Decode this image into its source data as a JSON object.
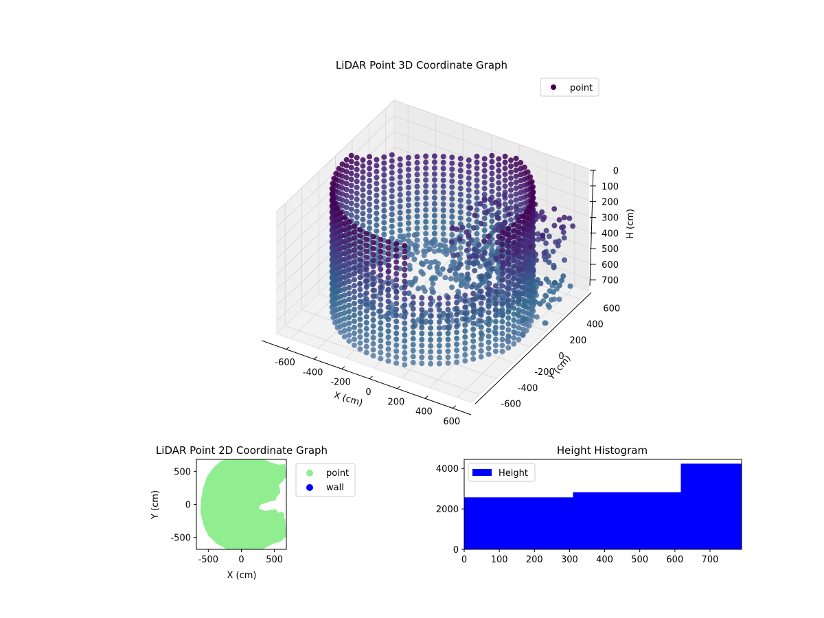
{
  "chart_data": [
    {
      "id": "lidar-3d",
      "type": "scatter",
      "title": "LiDAR Point 3D Coordinate Graph",
      "xlabel": "X (cm)",
      "ylabel": "Y (cm)",
      "zlabel": "H (cm)",
      "xlim": [
        -700,
        700
      ],
      "ylim": [
        -700,
        700
      ],
      "zlim": [
        0,
        780
      ],
      "z_inverted": true,
      "xticks": [
        -600,
        -400,
        -200,
        0,
        200,
        400,
        600
      ],
      "yticks": [
        -600,
        -400,
        -200,
        0,
        200,
        400,
        600
      ],
      "zticks": [
        0,
        100,
        200,
        300,
        400,
        500,
        600,
        700
      ],
      "legend": [
        "point"
      ],
      "legend_position": "upper-right",
      "grid": true,
      "colormap": [
        "#440154",
        "#482777",
        "#3e4a89",
        "#31688e",
        "#5b7ea6"
      ],
      "series": [
        {
          "name": "point",
          "shape": "cylindrical wall of points plus an irregular cluster toward +X/-Y",
          "ring_radius": 620,
          "height_range": [
            0,
            760
          ]
        }
      ]
    },
    {
      "id": "lidar-2d",
      "type": "scatter",
      "title": "LiDAR Point 2D Coordinate Graph",
      "xlabel": "X (cm)",
      "ylabel": "Y (cm)",
      "xlim": [
        -680,
        680
      ],
      "ylim": [
        -680,
        680
      ],
      "xticks": [
        -500,
        0,
        500
      ],
      "yticks": [
        -500,
        0,
        500
      ],
      "legend_position": "outside-right",
      "series": [
        {
          "name": "point",
          "color": "#90ee90"
        },
        {
          "name": "wall",
          "color": "#0000ff"
        }
      ]
    },
    {
      "id": "height-hist",
      "type": "bar",
      "title": "Height Histogram",
      "xlim": [
        0,
        790
      ],
      "ylim": [
        0,
        4450
      ],
      "xticks": [
        0,
        100,
        200,
        300,
        400,
        500,
        600,
        700
      ],
      "yticks": [
        0,
        2000,
        4000
      ],
      "legend_position": "upper-left",
      "series": [
        {
          "name": "Height",
          "color": "#0000ff",
          "bins": [
            {
              "x0": 0,
              "x1": 310,
              "value": 2570
            },
            {
              "x0": 310,
              "x1": 617,
              "value": 2820
            },
            {
              "x0": 617,
              "x1": 790,
              "value": 4240
            }
          ]
        }
      ]
    }
  ]
}
